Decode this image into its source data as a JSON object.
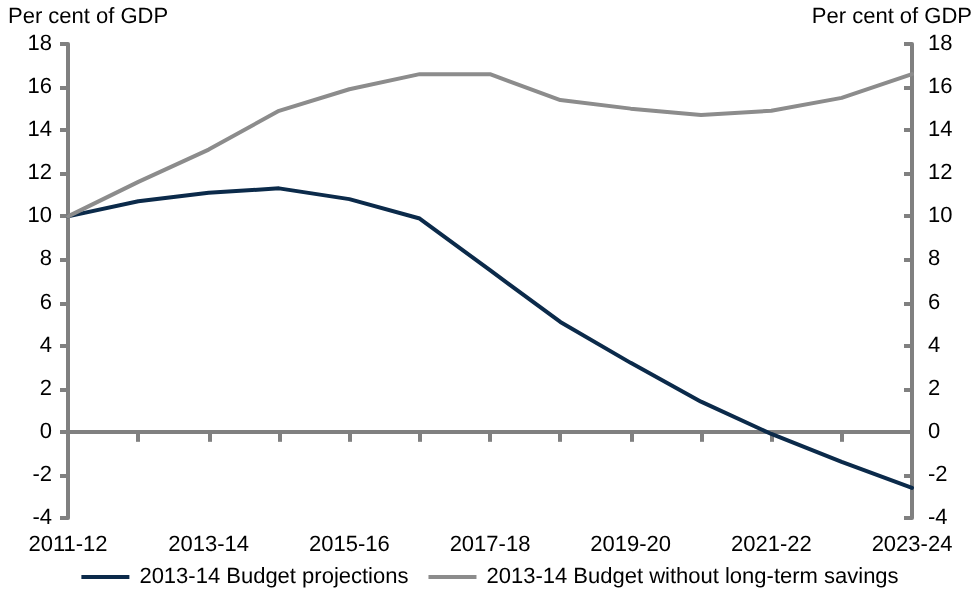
{
  "chart_data": {
    "type": "line",
    "ylabel": "Per cent of GDP",
    "y2label": "Per cent of GDP",
    "categories": [
      "2011-12",
      null,
      "2013-14",
      null,
      "2015-16",
      null,
      "2017-18",
      null,
      "2019-20",
      null,
      "2021-22",
      null,
      "2023-24"
    ],
    "series": [
      {
        "name": "2013-14 Budget projections",
        "color": "#0b2a4a",
        "values": [
          10,
          10.7,
          11.1,
          11.3,
          10.8,
          9.9,
          7.5,
          5.1,
          3.2,
          1.4,
          -0.1,
          -1.4,
          -2.6
        ]
      },
      {
        "name": "2013-14 Budget without long-term savings",
        "color": "#8c8c8c",
        "values": [
          10,
          11.6,
          13.1,
          14.9,
          15.9,
          16.6,
          16.6,
          15.4,
          15.0,
          14.7,
          14.9,
          15.5,
          16.6
        ]
      }
    ],
    "ylim": [
      -4,
      18
    ],
    "yticks": [
      -4,
      -2,
      0,
      2,
      4,
      6,
      8,
      10,
      12,
      14,
      16,
      18
    ],
    "y2lim": [
      -4,
      18
    ],
    "y2ticks": [
      -4,
      -2,
      0,
      2,
      4,
      6,
      8,
      10,
      12,
      14,
      16,
      18
    ],
    "legend": "bottom",
    "marker": "none",
    "line_style": "solid"
  }
}
